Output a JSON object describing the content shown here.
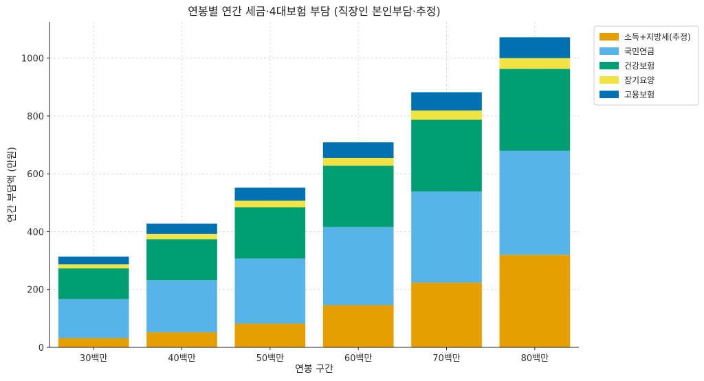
{
  "chart_data": {
    "type": "bar",
    "stacked": true,
    "title": "연봉별 연간 세금·4대보험 부담 (직장인 본인부담·추정)",
    "xlabel": "연봉 구간",
    "ylabel": "연간 부담액 (만원)",
    "categories": [
      "30백만",
      "40백만",
      "50백만",
      "60백만",
      "70백만",
      "80백만"
    ],
    "ylim": [
      0,
      1125
    ],
    "yticks": [
      0,
      200,
      400,
      600,
      800,
      1000
    ],
    "grid": true,
    "legend_position": "outside-top-right",
    "series": [
      {
        "name": "소득+지방세(추정)",
        "color": "#E69F00",
        "values": [
          32,
          52,
          82,
          146,
          224,
          320
        ]
      },
      {
        "name": "국민연금",
        "color": "#56B4E9",
        "values": [
          135,
          180,
          225,
          270,
          315,
          360
        ]
      },
      {
        "name": "건강보험",
        "color": "#009E73",
        "values": [
          106,
          142,
          177,
          212,
          248,
          283
        ]
      },
      {
        "name": "장기요양",
        "color": "#F0E442",
        "values": [
          14,
          18,
          23,
          27,
          32,
          37
        ]
      },
      {
        "name": "고용보험",
        "color": "#0072B2",
        "values": [
          27,
          36,
          45,
          54,
          63,
          72
        ]
      }
    ]
  }
}
